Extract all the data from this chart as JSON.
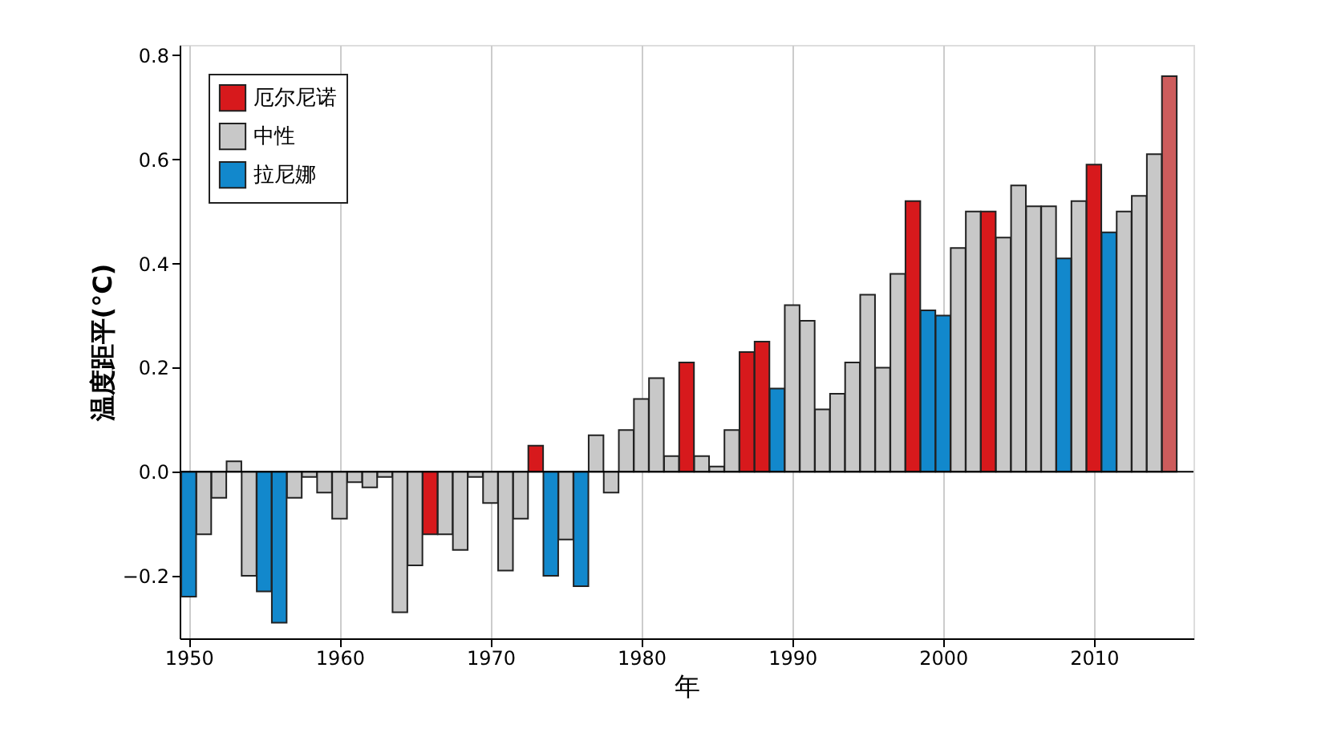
{
  "chart_data": {
    "type": "bar",
    "xlabel": "年",
    "ylabel": "温度距平(°C)",
    "series": [
      {
        "name": "厄尔尼诺",
        "color": "#d7191c",
        "x": [
          1966,
          1973,
          1983,
          1987,
          1988,
          1998,
          2003,
          2010,
          2015
        ],
        "values": [
          -0.12,
          0.05,
          0.21,
          0.23,
          0.25,
          0.52,
          0.5,
          0.59,
          0.76
        ],
        "colors": [
          "#d7191c",
          "#d7191c",
          "#d7191c",
          "#d7191c",
          "#d7191c",
          "#d7191c",
          "#d7191c",
          "#d7191c",
          "#cd5c5c"
        ]
      },
      {
        "name": "中性",
        "color": "#c8c8c8",
        "x": [
          1951,
          1952,
          1953,
          1954,
          1957,
          1958,
          1959,
          1960,
          1961,
          1962,
          1963,
          1964,
          1965,
          1967,
          1968,
          1969,
          1970,
          1971,
          1972,
          1975,
          1977,
          1978,
          1979,
          1980,
          1981,
          1982,
          1984,
          1985,
          1986,
          1990,
          1991,
          1992,
          1993,
          1994,
          1995,
          1996,
          1997,
          2001,
          2002,
          2004,
          2005,
          2006,
          2007,
          2009,
          2012,
          2013,
          2014
        ],
        "values": [
          -0.12,
          -0.05,
          0.02,
          -0.2,
          -0.05,
          -0.01,
          -0.04,
          -0.09,
          -0.02,
          -0.03,
          -0.01,
          -0.27,
          -0.18,
          -0.12,
          -0.15,
          -0.01,
          -0.06,
          -0.19,
          -0.09,
          -0.13,
          0.07,
          -0.04,
          0.08,
          0.14,
          0.18,
          0.03,
          0.03,
          0.01,
          0.08,
          0.32,
          0.29,
          0.12,
          0.15,
          0.21,
          0.34,
          0.2,
          0.38,
          0.43,
          0.5,
          0.45,
          0.55,
          0.51,
          0.51,
          0.52,
          0.5,
          0.53,
          0.61
        ]
      },
      {
        "name": "拉尼娜",
        "color": "#1288cc",
        "x": [
          1950,
          1955,
          1956,
          1974,
          1976,
          1989,
          1999,
          2000,
          2008,
          2011
        ],
        "values": [
          -0.24,
          -0.23,
          -0.29,
          -0.2,
          -0.22,
          0.16,
          0.31,
          0.3,
          0.41,
          0.46
        ]
      }
    ],
    "xlim": [
      1949.4,
      2016.6
    ],
    "xticks": [
      1950,
      1960,
      1970,
      1980,
      1990,
      2000,
      2010
    ],
    "ylim": [
      -0.32,
      0.82
    ],
    "yticks": [
      {
        "value": -0.2,
        "label": "−0.2"
      },
      {
        "value": 0,
        "label": "0.0"
      },
      {
        "value": 0.2,
        "label": "0.2"
      },
      {
        "value": 0.4,
        "label": "0.4"
      },
      {
        "value": 0.6,
        "label": "0.6"
      },
      {
        "value": 0.8,
        "label": "0.8"
      }
    ],
    "ref_lines": [
      {
        "axis": "y",
        "value": 0,
        "color": "#000000"
      }
    ],
    "grid": "x",
    "legend": "top left"
  }
}
